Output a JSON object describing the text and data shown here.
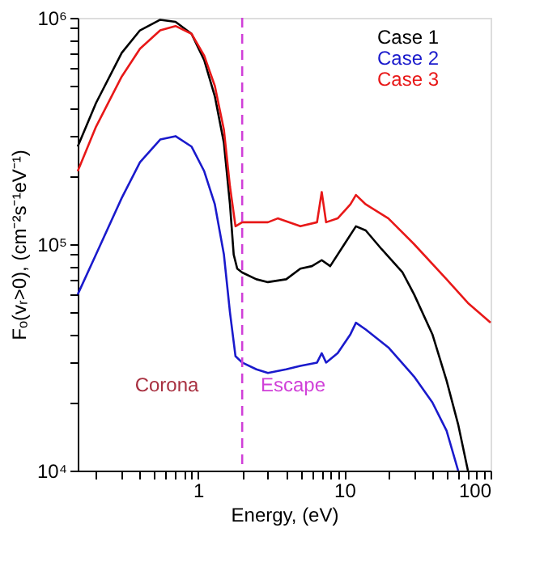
{
  "chart_data": {
    "type": "line",
    "xlabel": "Energy, (eV)",
    "ylabel": "Fₒ(vᵣ>0), (cm⁻²s⁻¹eV⁻¹)",
    "log": "xy",
    "xlim": [
      0.15,
      100
    ],
    "ylim": [
      10000,
      1000000
    ],
    "xticks": [
      {
        "value": 0.2,
        "label": null
      },
      {
        "value": 0.3,
        "label": null
      },
      {
        "value": 0.4,
        "label": null
      },
      {
        "value": 0.5,
        "label": null
      },
      {
        "value": 0.6,
        "label": null
      },
      {
        "value": 0.7,
        "label": null
      },
      {
        "value": 0.8,
        "label": null
      },
      {
        "value": 0.9,
        "label": null
      },
      1,
      {
        "value": 2,
        "label": null
      },
      {
        "value": 3,
        "label": null
      },
      {
        "value": 4,
        "label": null
      },
      {
        "value": 5,
        "label": null
      },
      {
        "value": 6,
        "label": null
      },
      {
        "value": 7,
        "label": null
      },
      {
        "value": 8,
        "label": null
      },
      {
        "value": 9,
        "label": null
      },
      10,
      {
        "value": 20,
        "label": null
      },
      {
        "value": 30,
        "label": null
      },
      {
        "value": 40,
        "label": null
      },
      {
        "value": 50,
        "label": null
      },
      {
        "value": 60,
        "label": null
      },
      {
        "value": 70,
        "label": null
      },
      {
        "value": 80,
        "label": null
      },
      {
        "value": 90,
        "label": null
      },
      100
    ],
    "yticks": [
      {
        "value": 10000,
        "label": "10⁴"
      },
      {
        "value": 20000,
        "label": null
      },
      {
        "value": 30000,
        "label": null
      },
      {
        "value": 40000,
        "label": null
      },
      {
        "value": 50000,
        "label": null
      },
      {
        "value": 60000,
        "label": null
      },
      {
        "value": 70000,
        "label": null
      },
      {
        "value": 80000,
        "label": null
      },
      {
        "value": 90000,
        "label": null
      },
      {
        "value": 100000,
        "label": "10⁵"
      },
      {
        "value": 200000,
        "label": null
      },
      {
        "value": 300000,
        "label": null
      },
      {
        "value": 400000,
        "label": null
      },
      {
        "value": 500000,
        "label": null
      },
      {
        "value": 600000,
        "label": null
      },
      {
        "value": 700000,
        "label": null
      },
      {
        "value": 800000,
        "label": null
      },
      {
        "value": 900000,
        "label": null
      },
      {
        "value": 1000000,
        "label": "10⁶"
      }
    ],
    "legend": "top right",
    "line_style": "solid",
    "marker": "none",
    "grid": false,
    "series": [
      {
        "name": "Case 1",
        "color": "#000000",
        "x": [
          0.15,
          0.2,
          0.3,
          0.4,
          0.55,
          0.7,
          0.9,
          1.1,
          1.3,
          1.5,
          1.65,
          1.75,
          1.85,
          2.0,
          2.5,
          3,
          4,
          5,
          6,
          7,
          8,
          10,
          12,
          14,
          18,
          25,
          30,
          40,
          50,
          60,
          70
        ],
        "values": [
          270000,
          420000,
          700000,
          880000,
          980000,
          960000,
          850000,
          650000,
          450000,
          280000,
          150000,
          90000,
          78000,
          75000,
          70000,
          68000,
          70000,
          78000,
          80000,
          85000,
          80000,
          100000,
          120000,
          115000,
          95000,
          75000,
          60000,
          40000,
          25000,
          16000,
          10000
        ]
      },
      {
        "name": "Case 2",
        "color": "#1a1acc",
        "x": [
          0.15,
          0.2,
          0.3,
          0.4,
          0.55,
          0.7,
          0.9,
          1.1,
          1.3,
          1.5,
          1.65,
          1.8,
          2,
          2.5,
          3,
          4,
          5,
          6.5,
          7,
          7.5,
          9,
          11,
          12,
          14,
          20,
          30,
          40,
          50,
          60
        ],
        "values": [
          60000,
          90000,
          160000,
          230000,
          290000,
          300000,
          270000,
          210000,
          150000,
          90000,
          50000,
          32000,
          30000,
          28000,
          27000,
          28000,
          29000,
          30000,
          33000,
          30000,
          33000,
          40000,
          45000,
          42000,
          35000,
          26000,
          20000,
          15000,
          10000
        ]
      },
      {
        "name": "Case 3",
        "color": "#e81818",
        "x": [
          0.15,
          0.2,
          0.3,
          0.4,
          0.55,
          0.7,
          0.9,
          1.1,
          1.3,
          1.5,
          1.65,
          1.8,
          2.0,
          3,
          3.5,
          5,
          6.5,
          7,
          7.5,
          9,
          11,
          12,
          14,
          20,
          30,
          50,
          70,
          100
        ],
        "values": [
          210000,
          330000,
          550000,
          730000,
          880000,
          920000,
          850000,
          680000,
          500000,
          320000,
          180000,
          120000,
          125000,
          125000,
          130000,
          120000,
          125000,
          170000,
          125000,
          130000,
          150000,
          165000,
          150000,
          130000,
          100000,
          70000,
          55000,
          45000
        ]
      }
    ],
    "ref_lines": [
      {
        "axis": "x",
        "value": 2,
        "color": "#d040d8",
        "line_style": "dashed"
      }
    ],
    "annotations": [
      "Corona",
      "Escape"
    ]
  }
}
